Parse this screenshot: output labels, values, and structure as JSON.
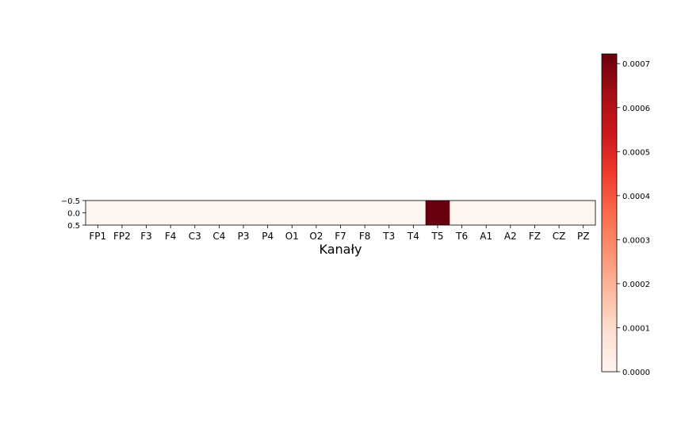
{
  "chart_data": {
    "type": "heatmap",
    "xlabel": "Kanały",
    "categories": [
      "FP1",
      "FP2",
      "F3",
      "F4",
      "C3",
      "C4",
      "P3",
      "P4",
      "O1",
      "O2",
      "F7",
      "F8",
      "T3",
      "T4",
      "T5",
      "T6",
      "A1",
      "A2",
      "FZ",
      "CZ",
      "PZ"
    ],
    "values": [
      0,
      0,
      0,
      0,
      0,
      0,
      0,
      0,
      0,
      0,
      0,
      0,
      0,
      0,
      0.000722,
      0,
      0,
      0,
      0,
      0,
      0
    ],
    "ylim": [
      0.5,
      -0.5
    ],
    "yticks": [
      "−0.5",
      "0.0",
      "0.5"
    ],
    "colorbar": {
      "min": 0,
      "max": 0.000722,
      "ticks": [
        0,
        0.0001,
        0.0002,
        0.0003,
        0.0004,
        0.0005,
        0.0006,
        0.0007
      ],
      "tick_labels": [
        "0.0000",
        "0.0001",
        "0.0002",
        "0.0003",
        "0.0004",
        "0.0005",
        "0.0006",
        "0.0007"
      ],
      "colormap": "Reds",
      "color_low": "#fff5f0",
      "color_high": "#67000d"
    }
  }
}
